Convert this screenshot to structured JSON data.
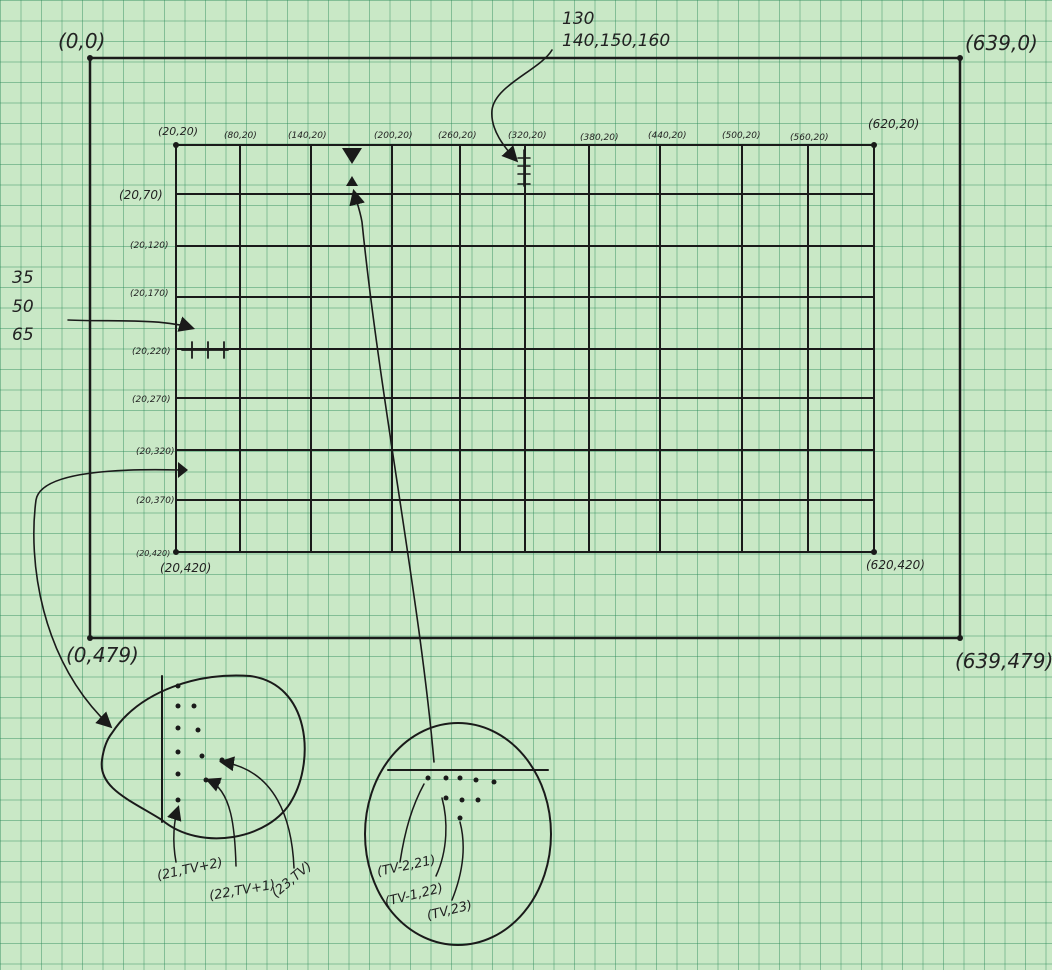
{
  "corners": {
    "top_left": "(0,0)",
    "top_right": "(639,0)",
    "bottom_left": "(0,479)",
    "bottom_right": "(639,479)"
  },
  "grid_corners": {
    "top_left": "(20,20)",
    "top_right": "(620,20)",
    "bottom_left": "(20,420)",
    "bottom_right": "(620,420)"
  },
  "top_labels": [
    "(80,20)",
    "(140,20)",
    "(200,20)",
    "(260,20)",
    "(320,20)",
    "(380,20)",
    "(440,20)",
    "(500,20)",
    "(560,20)"
  ],
  "left_labels": [
    "(20,70)",
    "(20,120)",
    "(20,170)",
    "(20,220)",
    "(20,270)",
    "(20,320)",
    "(20,370)",
    "(20,420)"
  ],
  "top_annotation": {
    "line1": "130",
    "line2": "140,150,160"
  },
  "left_annotation": {
    "line1": "35",
    "line2": "50",
    "line3": "65"
  },
  "left_zoom": {
    "label_1": "(21,TV+2)",
    "label_2": "(22,TV+1)",
    "label_3": "(23,TV)"
  },
  "bottom_zoom": {
    "label_1": "(TV-2,21)",
    "label_2": "(TV-1,22)",
    "label_3": "(TV,23)"
  }
}
